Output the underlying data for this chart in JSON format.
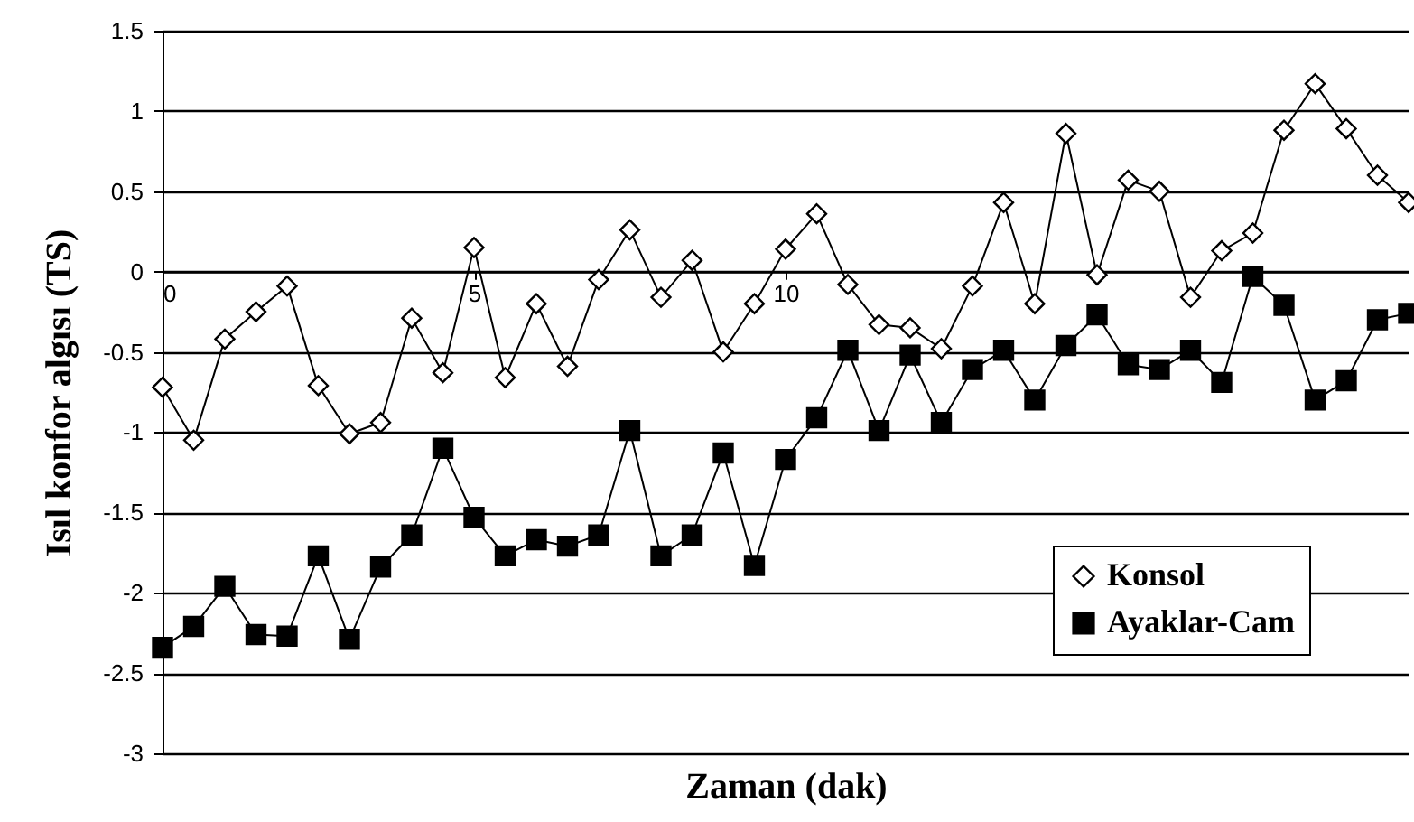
{
  "chart_data": {
    "type": "line",
    "xlabel": "Zaman (dak)",
    "ylabel": "Isıl konfor algısı (TS)",
    "x": [
      0,
      0.5,
      1,
      1.5,
      2,
      2.5,
      3,
      3.5,
      4,
      4.5,
      5,
      5.5,
      6,
      6.5,
      7,
      7.5,
      8,
      8.5,
      9,
      9.5,
      10,
      10.5,
      11,
      11.5,
      12,
      12.5,
      13,
      13.5,
      14,
      14.5,
      15,
      15.5,
      16,
      16.5,
      17,
      17.5,
      18,
      18.5,
      19,
      19.5,
      20
    ],
    "xlim": [
      0,
      20
    ],
    "xticks": [
      0,
      5,
      10
    ],
    "ylim": [
      -3,
      1.5
    ],
    "yticks": [
      -3,
      -2.5,
      -2,
      -1.5,
      -1,
      -0.5,
      0,
      0.5,
      1,
      1.5
    ],
    "grid": "y",
    "legend": "bottom right",
    "line_style": "solid",
    "series": [
      {
        "name": "Konsol",
        "color": "#000000",
        "marker": "diamond",
        "values": [
          -0.72,
          -1.05,
          -0.42,
          -0.25,
          -0.09,
          -0.71,
          -1.01,
          -0.94,
          -0.29,
          -0.63,
          0.15,
          -0.66,
          -0.2,
          -0.59,
          -0.05,
          0.26,
          -0.16,
          0.07,
          -0.5,
          -0.2,
          0.14,
          0.36,
          -0.08,
          -0.33,
          -0.35,
          -0.48,
          -0.09,
          0.43,
          -0.2,
          0.86,
          -0.02,
          0.57,
          0.5,
          -0.16,
          0.13,
          0.24,
          0.88,
          1.17,
          0.89,
          0.6,
          0.43
        ]
      },
      {
        "name": "Ayaklar-Cam",
        "color": "#000000",
        "marker": "square",
        "values": [
          -2.34,
          -2.21,
          -1.96,
          -2.26,
          -2.27,
          -1.77,
          -2.29,
          -1.84,
          -1.64,
          -1.1,
          -1.53,
          -1.77,
          -1.67,
          -1.71,
          -1.64,
          -0.99,
          -1.77,
          -1.64,
          -1.13,
          -1.83,
          -1.17,
          -0.91,
          -0.49,
          -0.99,
          -0.52,
          -0.94,
          -0.61,
          -0.49,
          -0.8,
          -0.46,
          -0.27,
          -0.58,
          -0.61,
          -0.49,
          -0.69,
          -0.03,
          -0.21,
          -0.8,
          -0.68,
          -0.3,
          -0.26
        ]
      }
    ]
  }
}
